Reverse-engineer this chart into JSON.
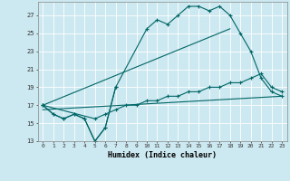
{
  "xlabel": "Humidex (Indice chaleur)",
  "bg_color": "#cce8f0",
  "grid_color": "#ffffff",
  "line_color": "#006666",
  "xlim": [
    -0.5,
    23.5
  ],
  "ylim": [
    13,
    28.5
  ],
  "yticks": [
    13,
    15,
    17,
    19,
    21,
    23,
    25,
    27
  ],
  "xticks": [
    0,
    1,
    2,
    3,
    4,
    5,
    6,
    7,
    8,
    9,
    10,
    11,
    12,
    13,
    14,
    15,
    16,
    17,
    18,
    19,
    20,
    21,
    22,
    23
  ],
  "line1_x": [
    0,
    1,
    2,
    3,
    4,
    5,
    6,
    7
  ],
  "line1_y": [
    17,
    16,
    15.5,
    16,
    15.5,
    13,
    14.5,
    19
  ],
  "line2_x": [
    0,
    1,
    2,
    3,
    4,
    5,
    6,
    7,
    10,
    11,
    12,
    13,
    14,
    15,
    16,
    17,
    18,
    19,
    20,
    21,
    22,
    23
  ],
  "line2_y": [
    17,
    16,
    15.5,
    16,
    15.5,
    13,
    14.5,
    19,
    25.5,
    26.5,
    26,
    27,
    28,
    28,
    27.5,
    28,
    27,
    25,
    23,
    20,
    18.5,
    18
  ],
  "line3_x": [
    0,
    18
  ],
  "line3_y": [
    17,
    25.5
  ],
  "line4_x": [
    0,
    23
  ],
  "line4_y": [
    16.5,
    18
  ],
  "line5_x": [
    0,
    5,
    6,
    7,
    8,
    9,
    10,
    11,
    12,
    13,
    14,
    15,
    16,
    17,
    18,
    19,
    20,
    21,
    22,
    23
  ],
  "line5_y": [
    17,
    15.5,
    16,
    16.5,
    17,
    17,
    17.5,
    17.5,
    18,
    18,
    18.5,
    18.5,
    19,
    19,
    19.5,
    19.5,
    20,
    20.5,
    19,
    18.5
  ]
}
